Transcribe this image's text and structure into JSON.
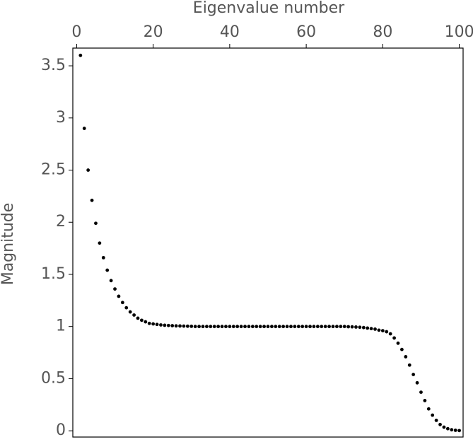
{
  "chart_data": {
    "type": "scatter",
    "x_label": "Eigenvalue number",
    "y_label": "Magnitude",
    "color": "#000000",
    "x": [
      1,
      2,
      3,
      4,
      5,
      6,
      7,
      8,
      9,
      10,
      11,
      12,
      13,
      14,
      15,
      16,
      17,
      18,
      19,
      20,
      21,
      22,
      23,
      24,
      25,
      26,
      27,
      28,
      29,
      30,
      31,
      32,
      33,
      34,
      35,
      36,
      37,
      38,
      39,
      40,
      41,
      42,
      43,
      44,
      45,
      46,
      47,
      48,
      49,
      50,
      51,
      52,
      53,
      54,
      55,
      56,
      57,
      58,
      59,
      60,
      61,
      62,
      63,
      64,
      65,
      66,
      67,
      68,
      69,
      70,
      71,
      72,
      73,
      74,
      75,
      76,
      77,
      78,
      79,
      80,
      81,
      82,
      83,
      84,
      85,
      86,
      87,
      88,
      89,
      90,
      91,
      92,
      93,
      94,
      95,
      96,
      97,
      98,
      99,
      100
    ],
    "values": [
      3.6,
      2.9,
      2.5,
      2.21,
      1.99,
      1.8,
      1.66,
      1.54,
      1.44,
      1.36,
      1.29,
      1.23,
      1.18,
      1.14,
      1.11,
      1.08,
      1.06,
      1.045,
      1.03,
      1.025,
      1.02,
      1.015,
      1.012,
      1.01,
      1.008,
      1.006,
      1.005,
      1.004,
      1.003,
      1.002,
      1,
      1,
      1,
      1,
      1,
      1,
      1,
      1,
      1,
      1,
      1,
      1,
      1,
      1,
      1,
      1,
      1,
      1,
      1,
      1,
      1,
      1,
      1,
      1,
      1,
      1,
      1,
      1,
      1,
      1,
      1,
      1,
      1,
      1,
      1,
      1,
      1,
      1,
      1,
      1,
      0.998,
      0.997,
      0.995,
      0.993,
      0.99,
      0.985,
      0.98,
      0.975,
      0.965,
      0.96,
      0.95,
      0.93,
      0.89,
      0.84,
      0.78,
      0.71,
      0.63,
      0.54,
      0.46,
      0.37,
      0.29,
      0.21,
      0.15,
      0.1,
      0.06,
      0.035,
      0.02,
      0.01,
      0.005,
      0.002
    ],
    "xlim": [
      -1,
      101
    ],
    "ylim": [
      -0.06,
      3.67
    ],
    "xticks": [
      0,
      20,
      40,
      60,
      80,
      100
    ],
    "yticks": [
      0,
      0.5,
      1,
      1.5,
      2,
      2.5,
      3,
      3.5
    ]
  }
}
